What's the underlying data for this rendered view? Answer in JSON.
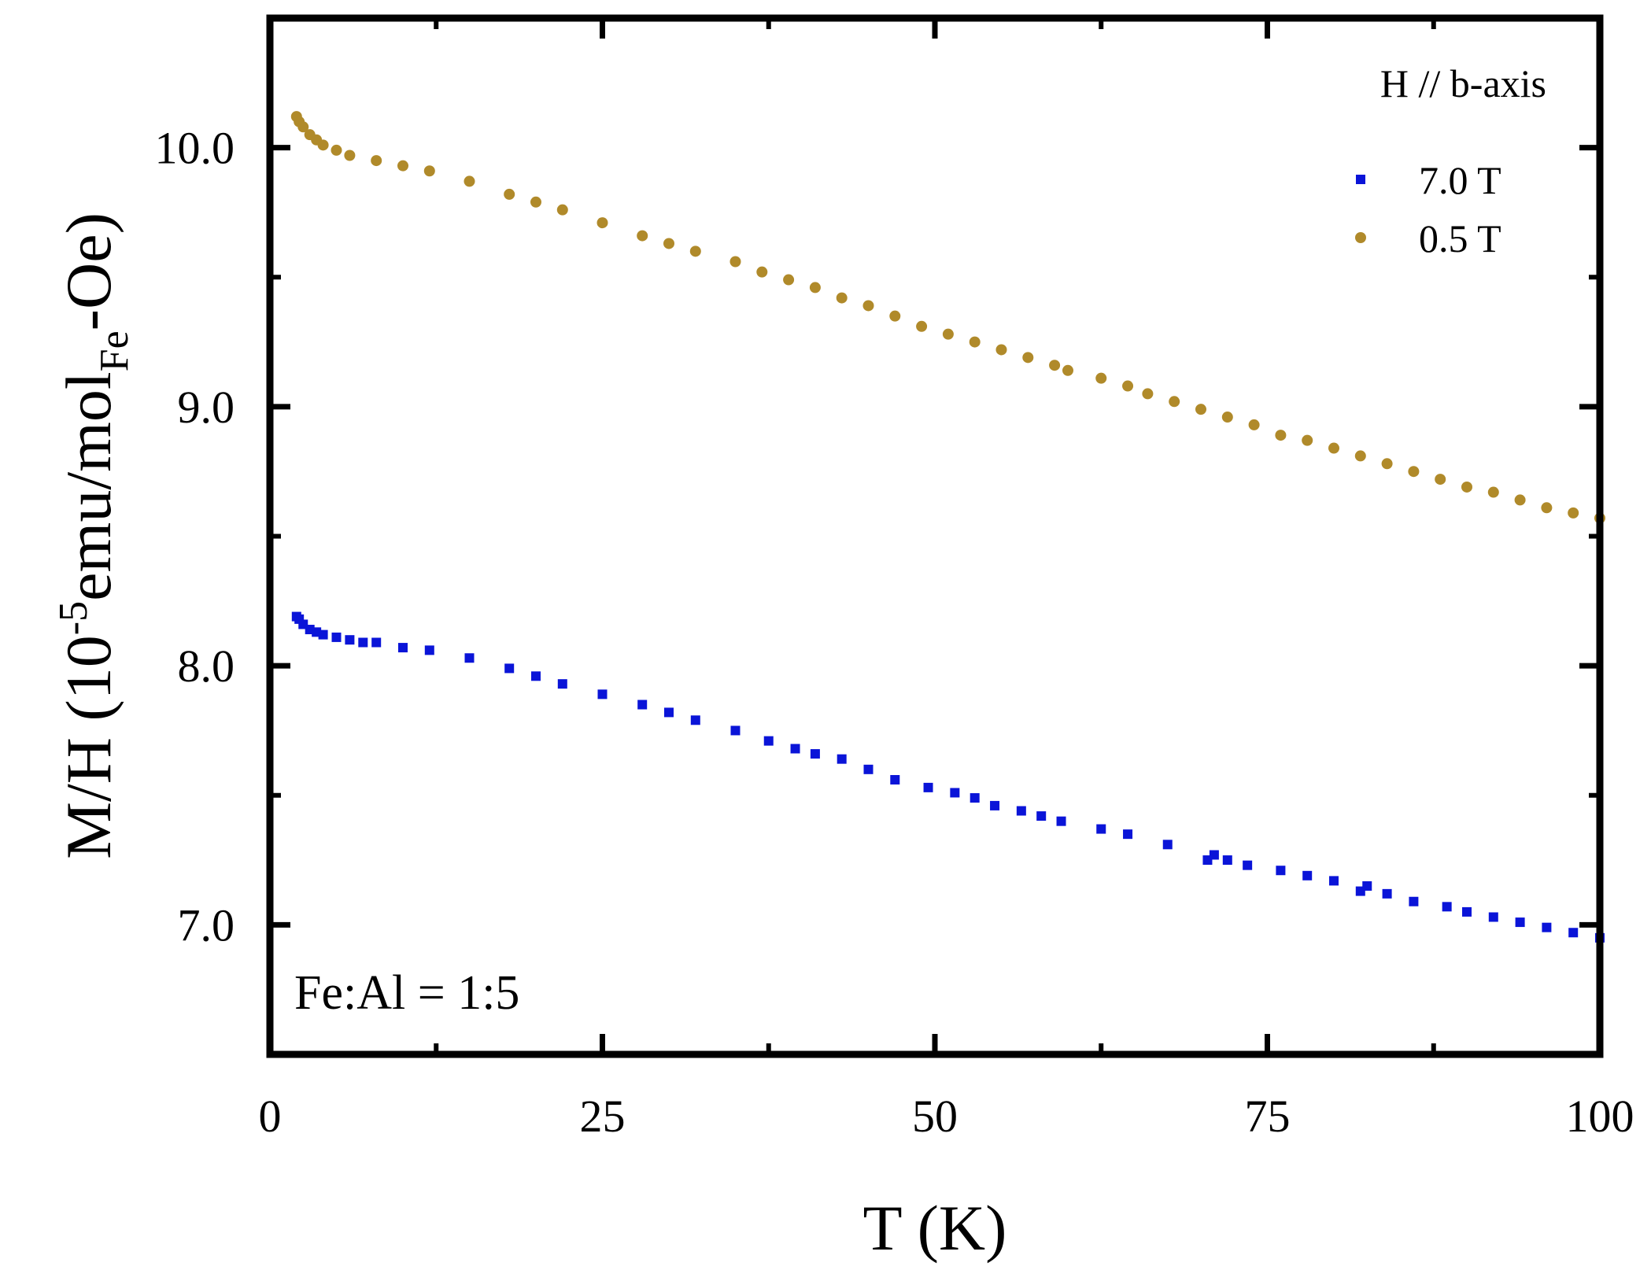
{
  "chart_data": {
    "type": "scatter",
    "title": "",
    "xlabel": "T (K)",
    "ylabel": {
      "main": "M/H (10",
      "exp": "-5",
      "mid": "emu/mol",
      "sub": "Fe",
      "end": "-Oe)"
    },
    "xlim": [
      0,
      100
    ],
    "ylim": [
      6.5,
      10.5
    ],
    "x_ticks": [
      0,
      25,
      50,
      75,
      100
    ],
    "x_tick_labels": [
      "0",
      "25",
      "50",
      "75",
      "100"
    ],
    "y_ticks": [
      7.0,
      8.0,
      9.0,
      10.0
    ],
    "y_tick_labels": [
      "7.0",
      "8.0",
      "9.0",
      "10.0"
    ],
    "grid": false,
    "legend_position": "top-right",
    "legend_title": "H // b-axis",
    "annotation": "Fe:Al = 1:5",
    "series": [
      {
        "name": "7.0 T",
        "marker": "square",
        "color": "#0a14d8",
        "x": [
          2.0,
          2.2,
          2.5,
          3.0,
          3.5,
          4.0,
          5.0,
          6.0,
          7.0,
          8.0,
          10.0,
          12.0,
          15.0,
          18.0,
          20.0,
          22.0,
          25.0,
          28.0,
          30.0,
          32.0,
          35.0,
          37.5,
          39.5,
          41.0,
          43.0,
          45.0,
          47.0,
          49.5,
          51.5,
          53.0,
          54.5,
          56.5,
          58.0,
          59.5,
          62.5,
          64.5,
          67.5,
          70.5,
          71.0,
          72.0,
          73.5,
          76.0,
          78.0,
          80.0,
          82.0,
          82.5,
          84.0,
          86.0,
          88.5,
          90.0,
          92.0,
          94.0,
          96.0,
          98.0,
          100.0
        ],
        "y": [
          8.19,
          8.18,
          8.16,
          8.14,
          8.13,
          8.12,
          8.11,
          8.1,
          8.09,
          8.09,
          8.07,
          8.06,
          8.03,
          7.99,
          7.96,
          7.93,
          7.89,
          7.85,
          7.82,
          7.79,
          7.75,
          7.71,
          7.68,
          7.66,
          7.64,
          7.6,
          7.56,
          7.53,
          7.51,
          7.49,
          7.46,
          7.44,
          7.42,
          7.4,
          7.37,
          7.35,
          7.31,
          7.25,
          7.27,
          7.25,
          7.23,
          7.21,
          7.19,
          7.17,
          7.13,
          7.15,
          7.12,
          7.09,
          7.07,
          7.05,
          7.03,
          7.01,
          6.99,
          6.97,
          6.95
        ]
      },
      {
        "name": "0.5 T",
        "marker": "circle",
        "color": "#b08a2a",
        "x": [
          2.0,
          2.2,
          2.5,
          3.0,
          3.5,
          4.0,
          5.0,
          6.0,
          8.0,
          10.0,
          12.0,
          15.0,
          18.0,
          20.0,
          22.0,
          25.0,
          28.0,
          30.0,
          32.0,
          35.0,
          37.0,
          39.0,
          41.0,
          43.0,
          45.0,
          47.0,
          49.0,
          51.0,
          53.0,
          55.0,
          57.0,
          59.0,
          60.0,
          62.5,
          64.5,
          66.0,
          68.0,
          70.0,
          72.0,
          74.0,
          76.0,
          78.0,
          80.0,
          82.0,
          84.0,
          86.0,
          88.0,
          90.0,
          92.0,
          94.0,
          96.0,
          98.0,
          100.0
        ],
        "y": [
          10.12,
          10.1,
          10.08,
          10.05,
          10.03,
          10.01,
          9.99,
          9.97,
          9.95,
          9.93,
          9.91,
          9.87,
          9.82,
          9.79,
          9.76,
          9.71,
          9.66,
          9.63,
          9.6,
          9.56,
          9.52,
          9.49,
          9.46,
          9.42,
          9.39,
          9.35,
          9.31,
          9.28,
          9.25,
          9.22,
          9.19,
          9.16,
          9.14,
          9.11,
          9.08,
          9.05,
          9.02,
          8.99,
          8.96,
          8.93,
          8.89,
          8.87,
          8.84,
          8.81,
          8.78,
          8.75,
          8.72,
          8.69,
          8.67,
          8.64,
          8.61,
          8.59,
          8.57
        ]
      }
    ]
  }
}
